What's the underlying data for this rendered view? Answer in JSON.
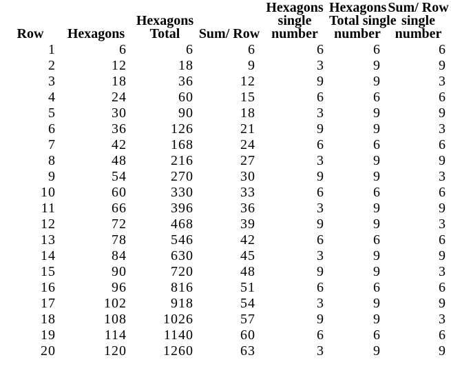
{
  "colors": {
    "text": "#000000",
    "background": "#ffffff"
  },
  "table": {
    "columns": [
      {
        "id": "row",
        "header_lines": [
          "Row"
        ]
      },
      {
        "id": "hexagons",
        "header_lines": [
          "Hexagons"
        ]
      },
      {
        "id": "hexagons-total",
        "header_lines": [
          "Hexagons",
          "Total"
        ]
      },
      {
        "id": "sum-row",
        "header_lines": [
          "Sum/ Row"
        ]
      },
      {
        "id": "hexagons-single",
        "header_lines": [
          "Hexagons",
          "single",
          "number"
        ]
      },
      {
        "id": "hexagons-total-single",
        "header_lines": [
          "Hexagons",
          "Total single",
          "number"
        ]
      },
      {
        "id": "sum-row-single",
        "header_lines": [
          "Sum/ Row",
          "single",
          "number"
        ]
      }
    ],
    "rows": [
      [
        1,
        6,
        6,
        6,
        6,
        6,
        6
      ],
      [
        2,
        12,
        18,
        9,
        3,
        9,
        9
      ],
      [
        3,
        18,
        36,
        12,
        9,
        9,
        3
      ],
      [
        4,
        24,
        60,
        15,
        6,
        6,
        6
      ],
      [
        5,
        30,
        90,
        18,
        3,
        9,
        9
      ],
      [
        6,
        36,
        126,
        21,
        9,
        9,
        3
      ],
      [
        7,
        42,
        168,
        24,
        6,
        6,
        6
      ],
      [
        8,
        48,
        216,
        27,
        3,
        9,
        9
      ],
      [
        9,
        54,
        270,
        30,
        9,
        9,
        3
      ],
      [
        10,
        60,
        330,
        33,
        6,
        6,
        6
      ],
      [
        11,
        66,
        396,
        36,
        3,
        9,
        9
      ],
      [
        12,
        72,
        468,
        39,
        9,
        9,
        3
      ],
      [
        13,
        78,
        546,
        42,
        6,
        6,
        6
      ],
      [
        14,
        84,
        630,
        45,
        3,
        9,
        9
      ],
      [
        15,
        90,
        720,
        48,
        9,
        9,
        3
      ],
      [
        16,
        96,
        816,
        51,
        6,
        6,
        6
      ],
      [
        17,
        102,
        918,
        54,
        3,
        9,
        9
      ],
      [
        18,
        108,
        1026,
        57,
        9,
        9,
        3
      ],
      [
        19,
        114,
        1140,
        60,
        6,
        6,
        6
      ],
      [
        20,
        120,
        1260,
        63,
        3,
        9,
        9
      ]
    ]
  },
  "chart_data": {
    "type": "table",
    "title": "",
    "columns": [
      "Row",
      "Hexagons",
      "Hexagons Total",
      "Sum/ Row",
      "Hexagons single number",
      "Hexagons Total single number",
      "Sum/ Row single number"
    ],
    "rows": [
      [
        1,
        6,
        6,
        6,
        6,
        6,
        6
      ],
      [
        2,
        12,
        18,
        9,
        3,
        9,
        9
      ],
      [
        3,
        18,
        36,
        12,
        9,
        9,
        3
      ],
      [
        4,
        24,
        60,
        15,
        6,
        6,
        6
      ],
      [
        5,
        30,
        90,
        18,
        3,
        9,
        9
      ],
      [
        6,
        36,
        126,
        21,
        9,
        9,
        3
      ],
      [
        7,
        42,
        168,
        24,
        6,
        6,
        6
      ],
      [
        8,
        48,
        216,
        27,
        3,
        9,
        9
      ],
      [
        9,
        54,
        270,
        30,
        9,
        9,
        3
      ],
      [
        10,
        60,
        330,
        33,
        6,
        6,
        6
      ],
      [
        11,
        66,
        396,
        36,
        3,
        9,
        9
      ],
      [
        12,
        72,
        468,
        39,
        9,
        9,
        3
      ],
      [
        13,
        78,
        546,
        42,
        6,
        6,
        6
      ],
      [
        14,
        84,
        630,
        45,
        3,
        9,
        9
      ],
      [
        15,
        90,
        720,
        48,
        9,
        9,
        3
      ],
      [
        16,
        96,
        816,
        51,
        6,
        6,
        6
      ],
      [
        17,
        102,
        918,
        54,
        3,
        9,
        9
      ],
      [
        18,
        108,
        1026,
        57,
        9,
        9,
        3
      ],
      [
        19,
        114,
        1140,
        60,
        6,
        6,
        6
      ],
      [
        20,
        120,
        1260,
        63,
        3,
        9,
        9
      ]
    ]
  }
}
